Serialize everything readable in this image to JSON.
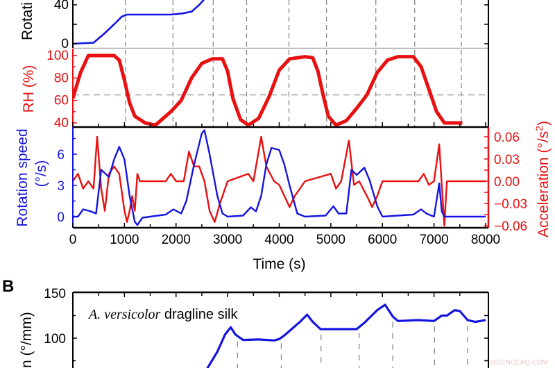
{
  "colors": {
    "rotation": "#1414e0",
    "rh": "#e81010",
    "acceleration": "#e81010",
    "axis": "#000000",
    "gridline": "#888888"
  },
  "watermark": "SCIENCEAQ.COM",
  "chart_data": [
    {
      "panel": "A-top",
      "type": "line",
      "ylabel": "Rotati",
      "yticks": [
        "0",
        "40"
      ],
      "ylim_visible": [
        -3,
        45
      ],
      "series": [
        {
          "color": "#1414e0",
          "points": [
            [
              0,
              0
            ],
            [
              200,
              0.5
            ],
            [
              400,
              1
            ],
            [
              600,
              10
            ],
            [
              800,
              20
            ],
            [
              950,
              28
            ],
            [
              1050,
              30
            ],
            [
              1500,
              30
            ],
            [
              1900,
              30
            ],
            [
              2100,
              31
            ],
            [
              2300,
              33
            ],
            [
              2450,
              40
            ],
            [
              2550,
              46
            ]
          ]
        }
      ]
    },
    {
      "panel": "A-rh",
      "type": "line",
      "ylabel": "RH (%)",
      "yticks": [
        "40",
        "60",
        "80",
        "100"
      ],
      "ylim": [
        37,
        106
      ],
      "reference_line_y": 65,
      "series": [
        {
          "color": "#e81010",
          "points": [
            [
              0,
              62
            ],
            [
              150,
              85
            ],
            [
              300,
              100
            ],
            [
              800,
              100
            ],
            [
              900,
              96
            ],
            [
              1000,
              78
            ],
            [
              1100,
              58
            ],
            [
              1200,
              46
            ],
            [
              1400,
              40
            ],
            [
              1600,
              38
            ],
            [
              1700,
              42
            ],
            [
              1900,
              50
            ],
            [
              2100,
              60
            ],
            [
              2300,
              80
            ],
            [
              2500,
              93
            ],
            [
              2700,
              97
            ],
            [
              2900,
              97
            ],
            [
              3000,
              86
            ],
            [
              3100,
              62
            ],
            [
              3250,
              43
            ],
            [
              3400,
              38
            ],
            [
              3600,
              44
            ],
            [
              3800,
              63
            ],
            [
              4000,
              87
            ],
            [
              4200,
              97
            ],
            [
              4500,
              99
            ],
            [
              4650,
              98
            ],
            [
              4750,
              86
            ],
            [
              4850,
              65
            ],
            [
              4950,
              46
            ],
            [
              5100,
              38
            ],
            [
              5300,
              42
            ],
            [
              5500,
              53
            ],
            [
              5700,
              65
            ],
            [
              5900,
              85
            ],
            [
              6100,
              96
            ],
            [
              6300,
              99
            ],
            [
              6600,
              99
            ],
            [
              6750,
              90
            ],
            [
              6900,
              70
            ],
            [
              7050,
              50
            ],
            [
              7200,
              40
            ],
            [
              7400,
              40
            ],
            [
              7500,
              40
            ],
            [
              7550,
              40
            ]
          ]
        }
      ]
    },
    {
      "panel": "A-speed",
      "type": "line",
      "xlabel": "Time (s)",
      "xticks": [
        "0",
        "1000",
        "2000",
        "3000",
        "4000",
        "5000",
        "6000",
        "7000",
        "8000"
      ],
      "xlim": [
        0,
        8000
      ],
      "ylabel_left": [
        "Rotation speed",
        "(°/s)"
      ],
      "ylabel_right": "Acceleration (°/s",
      "ylabel_right_sup": "2",
      "ylabel_right_close": ")",
      "yticks_left": [
        "0",
        "3",
        "6"
      ],
      "yticks_right": [
        "0.06",
        "0.03",
        "0.00",
        "−0.03",
        "−0.06"
      ],
      "ylim_left": [
        -1.1,
        8.6
      ],
      "ylim_right": [
        -0.0675,
        0.068
      ],
      "vertical_dashed_lines_time": [
        1024,
        1940,
        2720,
        3367,
        4188,
        4916,
        5872,
        6626,
        7529
      ],
      "series": [
        {
          "axis": "left",
          "color": "#1414e0",
          "points": [
            [
              0,
              0
            ],
            [
              100,
              0
            ],
            [
              200,
              0.7
            ],
            [
              350,
              0.5
            ],
            [
              450,
              0.3
            ],
            [
              550,
              4.5
            ],
            [
              700,
              3.8
            ],
            [
              800,
              5.5
            ],
            [
              900,
              6.7
            ],
            [
              1000,
              5.5
            ],
            [
              1100,
              2
            ],
            [
              1200,
              -0.5
            ],
            [
              1250,
              -0.8
            ],
            [
              1350,
              -0.1
            ],
            [
              1500,
              0
            ],
            [
              1800,
              0.2
            ],
            [
              1950,
              0.7
            ],
            [
              2100,
              0.3
            ],
            [
              2200,
              1.5
            ],
            [
              2350,
              5
            ],
            [
              2500,
              8
            ],
            [
              2550,
              8.3
            ],
            [
              2650,
              6
            ],
            [
              2800,
              2
            ],
            [
              2900,
              0.3
            ],
            [
              3000,
              0
            ],
            [
              3300,
              0.1
            ],
            [
              3450,
              0.9
            ],
            [
              3550,
              0.5
            ],
            [
              3650,
              2
            ],
            [
              3750,
              5
            ],
            [
              3850,
              6.6
            ],
            [
              4000,
              6.4
            ],
            [
              4100,
              5
            ],
            [
              4200,
              3
            ],
            [
              4350,
              0.3
            ],
            [
              4500,
              0
            ],
            [
              4900,
              0.1
            ],
            [
              5050,
              1
            ],
            [
              5150,
              0.3
            ],
            [
              5300,
              0.3
            ],
            [
              5400,
              4.5
            ],
            [
              5500,
              4
            ],
            [
              5650,
              4.7
            ],
            [
              5750,
              3.5
            ],
            [
              5900,
              1
            ],
            [
              6000,
              0
            ],
            [
              6600,
              0.2
            ],
            [
              6750,
              0.7
            ],
            [
              6850,
              0.3
            ],
            [
              7000,
              0
            ],
            [
              7100,
              3.2
            ],
            [
              7150,
              0.5
            ],
            [
              7200,
              0
            ],
            [
              8000,
              0
            ]
          ]
        },
        {
          "axis": "right",
          "color": "#e81010",
          "points": [
            [
              0,
              0
            ],
            [
              100,
              0.01
            ],
            [
              200,
              -0.01
            ],
            [
              300,
              0
            ],
            [
              400,
              -0.01
            ],
            [
              470,
              0.06
            ],
            [
              550,
              -0.01
            ],
            [
              620,
              -0.04
            ],
            [
              700,
              0.01
            ],
            [
              800,
              0.02
            ],
            [
              900,
              0.01
            ],
            [
              1000,
              -0.04
            ],
            [
              1050,
              -0.055
            ],
            [
              1100,
              -0.04
            ],
            [
              1150,
              -0.02
            ],
            [
              1200,
              -0.04
            ],
            [
              1250,
              0.01
            ],
            [
              1300,
              0
            ],
            [
              1800,
              0
            ],
            [
              1900,
              0.01
            ],
            [
              2000,
              0
            ],
            [
              2150,
              0
            ],
            [
              2250,
              0.04
            ],
            [
              2350,
              0.02
            ],
            [
              2450,
              0.02
            ],
            [
              2550,
              0
            ],
            [
              2650,
              -0.04
            ],
            [
              2750,
              -0.055
            ],
            [
              2850,
              -0.03
            ],
            [
              2950,
              -0.01
            ],
            [
              3000,
              0
            ],
            [
              3400,
              0.01
            ],
            [
              3500,
              0
            ],
            [
              3650,
              0.06
            ],
            [
              3750,
              0.02
            ],
            [
              3900,
              0
            ],
            [
              4000,
              -0.005
            ],
            [
              4200,
              -0.035
            ],
            [
              4300,
              -0.02
            ],
            [
              4400,
              -0.01
            ],
            [
              4500,
              0
            ],
            [
              5000,
              0.01
            ],
            [
              5100,
              -0.01
            ],
            [
              5200,
              0
            ],
            [
              5350,
              0.055
            ],
            [
              5450,
              -0.005
            ],
            [
              5550,
              0
            ],
            [
              5700,
              -0.02
            ],
            [
              5800,
              -0.035
            ],
            [
              5900,
              -0.02
            ],
            [
              6000,
              0
            ],
            [
              6700,
              0
            ],
            [
              6800,
              0.01
            ],
            [
              6900,
              -0.005
            ],
            [
              7000,
              0
            ],
            [
              7100,
              0.05
            ],
            [
              7200,
              -0.06
            ],
            [
              7250,
              0
            ],
            [
              8000,
              0
            ]
          ]
        }
      ]
    },
    {
      "panel": "B",
      "panel_label": "B",
      "type": "line",
      "annotation_italic": "A. versicolor",
      "annotation": " dragline silk",
      "ylabel": "n (°/mm)",
      "yticks": [
        "100",
        "150"
      ],
      "ylim_visible": [
        67,
        150
      ],
      "vertical_dashed_lines_time": [
        3190,
        4040,
        4810,
        5550,
        6200,
        7010,
        7650
      ],
      "series": [
        {
          "color": "#1414e0",
          "points": [
            [
              2600,
              66
            ],
            [
              2800,
              85
            ],
            [
              2950,
              104
            ],
            [
              3060,
              112
            ],
            [
              3150,
              104
            ],
            [
              3300,
              98
            ],
            [
              3600,
              98.5
            ],
            [
              3900,
              97.5
            ],
            [
              4000,
              99
            ],
            [
              4100,
              103
            ],
            [
              4400,
              118
            ],
            [
              4540,
              126
            ],
            [
              4650,
              118
            ],
            [
              4800,
              110
            ],
            [
              5200,
              110
            ],
            [
              5500,
              110
            ],
            [
              5650,
              117
            ],
            [
              5900,
              131
            ],
            [
              6050,
              137
            ],
            [
              6200,
              124
            ],
            [
              6300,
              119
            ],
            [
              6700,
              120
            ],
            [
              7000,
              119
            ],
            [
              7150,
              125
            ],
            [
              7250,
              125
            ],
            [
              7400,
              131
            ],
            [
              7500,
              130
            ],
            [
              7650,
              120
            ],
            [
              7800,
              118
            ],
            [
              8000,
              120
            ]
          ]
        }
      ]
    }
  ]
}
